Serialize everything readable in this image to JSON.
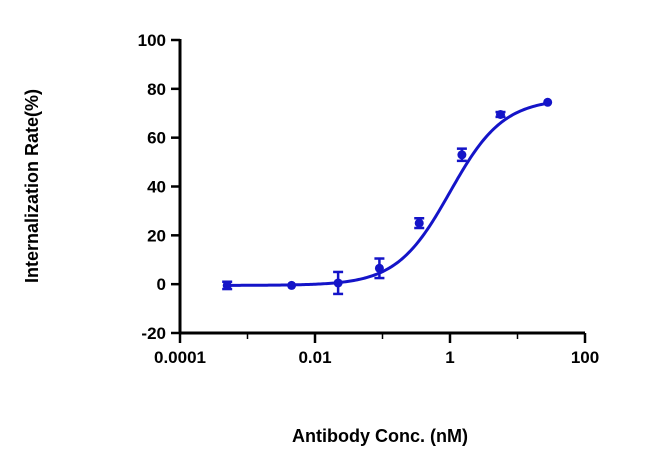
{
  "chart_data": {
    "type": "scatter",
    "title": "",
    "xlabel": "Antibody Conc. (nM)",
    "ylabel": "Internalization Rate(%)",
    "x_scale": "log",
    "xlim": [
      0.0001,
      100
    ],
    "ylim": [
      -20,
      100
    ],
    "x_ticks": [
      0.0001,
      0.01,
      1,
      100
    ],
    "x_tick_labels": [
      "0.0001",
      "0.01",
      "1",
      "100"
    ],
    "y_ticks": [
      -20,
      0,
      20,
      40,
      60,
      80,
      100
    ],
    "y_tick_labels": [
      "-20",
      "0",
      "20",
      "40",
      "60",
      "80",
      "100"
    ],
    "grid": false,
    "color": "#1414C8",
    "series": [
      {
        "x": [
          0.0005,
          0.0045,
          0.022,
          0.09,
          0.35,
          1.5,
          5.6,
          28
        ],
        "y": [
          -0.5,
          -0.5,
          0.5,
          6.5,
          25,
          53,
          69.5,
          74.5
        ],
        "error": [
          1.5,
          0.5,
          4.5,
          4,
          2,
          2.5,
          1,
          0.5
        ]
      }
    ],
    "fit": {
      "model": "sigmoidal dose-response",
      "bottom": -0.5,
      "top": 76,
      "log_ec50": 0.0,
      "hill_slope": 1.1
    }
  }
}
